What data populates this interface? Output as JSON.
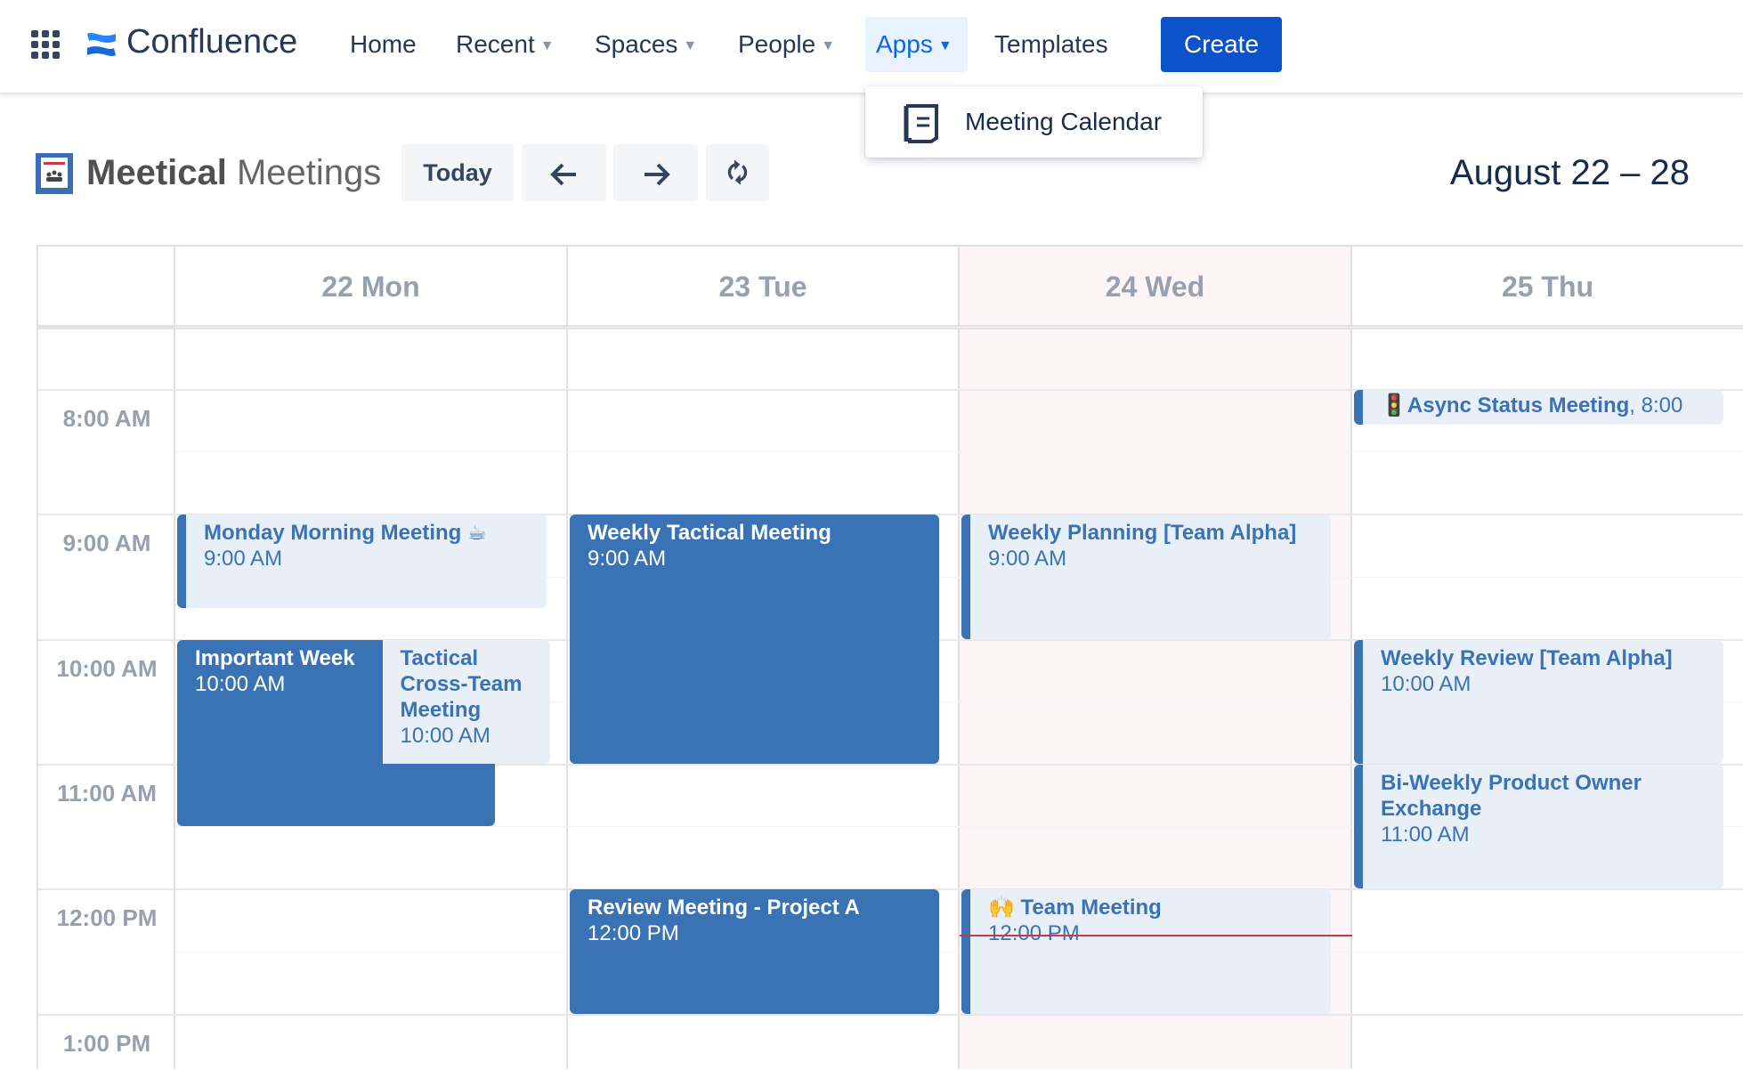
{
  "nav": {
    "product": "Confluence",
    "items": [
      {
        "label": "Home",
        "chevron": false
      },
      {
        "label": "Recent",
        "chevron": true
      },
      {
        "label": "Spaces",
        "chevron": true
      },
      {
        "label": "People",
        "chevron": true
      },
      {
        "label": "Apps",
        "chevron": true,
        "active": true
      },
      {
        "label": "Templates",
        "chevron": false
      }
    ],
    "create_label": "Create",
    "accent": "#0c52c8"
  },
  "apps_menu": {
    "items": [
      {
        "label": "Meeting Calendar",
        "icon": "calendar-document-icon"
      }
    ]
  },
  "toolbar": {
    "brand": "Meetical",
    "subtitle": "Meetings",
    "today_label": "Today",
    "prev_icon": "arrow-left-icon",
    "next_icon": "arrow-right-icon",
    "refresh_icon": "refresh-icon",
    "date_range": "August 22 – 28"
  },
  "calendar": {
    "days": [
      {
        "label": "22 Mon",
        "today": false
      },
      {
        "label": "23 Tue",
        "today": false
      },
      {
        "label": "24 Wed",
        "today": true
      },
      {
        "label": "25 Thu",
        "today": false
      }
    ],
    "hours": [
      "8:00 AM",
      "9:00 AM",
      "10:00 AM",
      "11:00 AM",
      "12:00 PM",
      "1:00 PM"
    ],
    "current_time": "12:22",
    "event_color": "#3a73b5",
    "today_bg": "#fdf4f5",
    "events": [
      {
        "id": "mon-morning",
        "day": 0,
        "start": "9:00",
        "end": "9:45",
        "title": "Monday Morning Meeting ☕",
        "time": "9:00 AM",
        "style": "light"
      },
      {
        "id": "important-week",
        "day": 0,
        "start": "10:00",
        "end": "11:30",
        "title": "Important Week",
        "time": "10:00 AM",
        "style": "dark"
      },
      {
        "id": "tactical-cross",
        "day": 0,
        "start": "10:00",
        "end": "11:00",
        "title": "Tactical Cross-Team Meeting",
        "time": "10:00 AM",
        "style": "light"
      },
      {
        "id": "weekly-tactical",
        "day": 1,
        "start": "9:00",
        "end": "11:00",
        "title": "Weekly Tactical Meeting",
        "time": "9:00 AM",
        "style": "dark"
      },
      {
        "id": "review-project-a",
        "day": 1,
        "start": "12:00",
        "end": "13:00",
        "title": "Review Meeting - Project A",
        "time": "12:00 PM",
        "style": "dark"
      },
      {
        "id": "weekly-planning",
        "day": 2,
        "start": "9:00",
        "end": "10:00",
        "title": "Weekly Planning [Team Alpha]",
        "time": "9:00 AM",
        "style": "light"
      },
      {
        "id": "team-meeting",
        "day": 2,
        "start": "12:00",
        "end": "13:00",
        "title": "🙌 Team Meeting",
        "time": "12:00 PM",
        "style": "light"
      },
      {
        "id": "async-status",
        "day": 3,
        "start": "8:00",
        "end": "8:17",
        "title": "🚦Async Status Meeting",
        "time": ", 8:00",
        "style": "light",
        "inline": true
      },
      {
        "id": "weekly-review",
        "day": 3,
        "start": "10:00",
        "end": "11:00",
        "title": "Weekly Review [Team Alpha]",
        "time": "10:00 AM",
        "style": "light"
      },
      {
        "id": "bi-weekly-po",
        "day": 3,
        "start": "11:00",
        "end": "12:00",
        "title": "Bi-Weekly Product Owner Exchange",
        "time": "11:00 AM",
        "style": "light"
      }
    ]
  }
}
